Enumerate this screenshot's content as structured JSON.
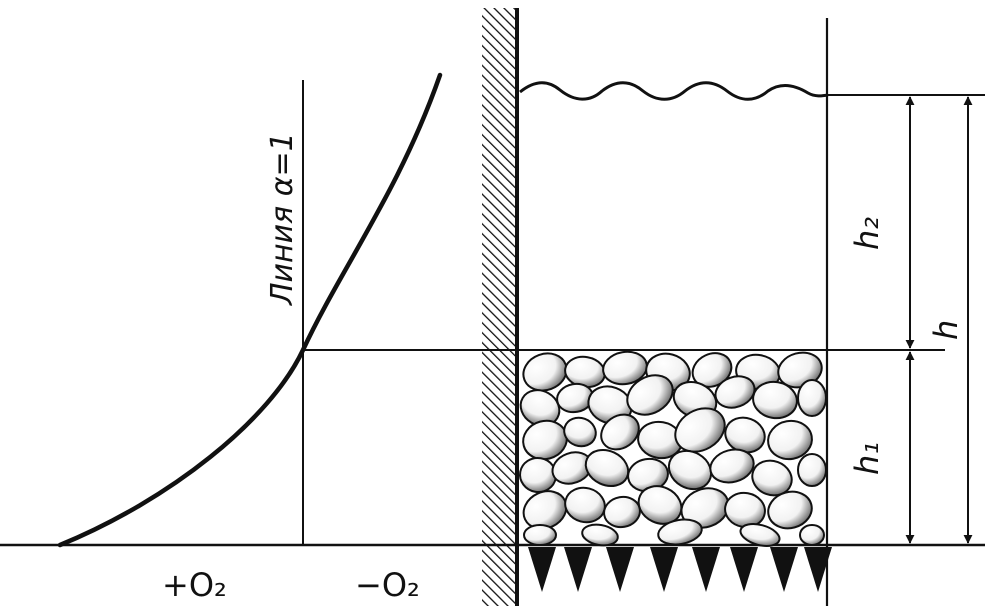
{
  "diagram": {
    "line_label": "Линия α=1",
    "axis_positive": "+O₂",
    "axis_negative": "−O₂",
    "dimensions": {
      "h": "h",
      "h1": "h₁",
      "h2": "h₂"
    },
    "colors": {
      "ink": "#111111",
      "background": "#ffffff"
    }
  }
}
